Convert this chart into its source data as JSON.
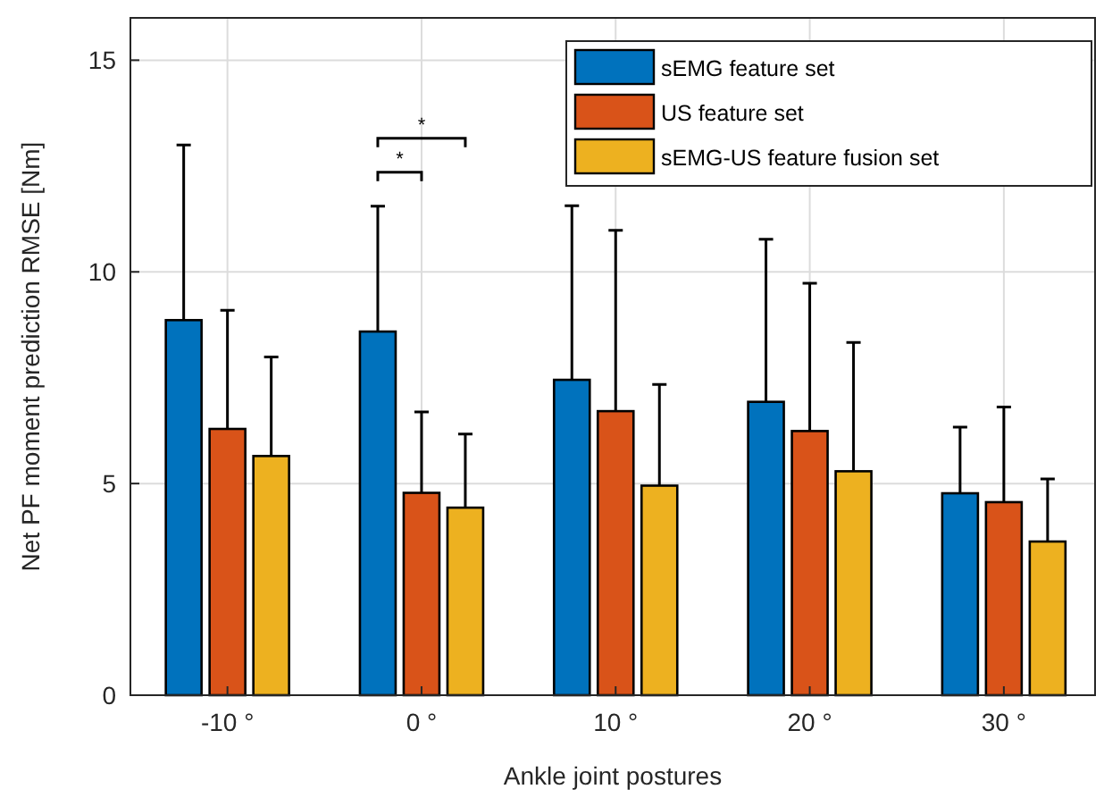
{
  "chart_data": {
    "type": "bar",
    "xlabel": "Ankle joint postures",
    "ylabel": "Net PF moment prediction RMSE [Nm]",
    "categories": [
      "-10 °",
      "0 °",
      "10 °",
      "20 °",
      "30 °"
    ],
    "series": [
      {
        "name": "sEMG feature set",
        "color": "#0072bd",
        "values": [
          8.86,
          8.59,
          7.45,
          6.93,
          4.77
        ],
        "errors": [
          [
            8.86,
            13.0
          ],
          [
            8.59,
            11.55
          ],
          [
            7.45,
            11.56
          ],
          [
            6.93,
            10.77
          ],
          [
            4.77,
            6.33
          ]
        ]
      },
      {
        "name": "US feature set",
        "color": "#d95319",
        "values": [
          6.29,
          4.78,
          6.71,
          6.24,
          4.56
        ],
        "errors": [
          [
            6.29,
            9.09
          ],
          [
            4.78,
            6.69
          ],
          [
            6.71,
            10.98
          ],
          [
            6.24,
            9.73
          ],
          [
            4.56,
            6.81
          ]
        ]
      },
      {
        "name": "sEMG-US feature fusion set",
        "color": "#edb120",
        "values": [
          5.65,
          4.43,
          4.95,
          5.29,
          3.63
        ],
        "errors": [
          [
            5.65,
            7.99
          ],
          [
            4.43,
            6.17
          ],
          [
            4.95,
            7.34
          ],
          [
            5.29,
            8.33
          ],
          [
            3.63,
            5.11
          ]
        ]
      }
    ],
    "ylim": [
      0,
      16
    ],
    "yticks": [
      0,
      5,
      10,
      15
    ],
    "grid": true,
    "legend": "top right",
    "annotations": [
      "*",
      "*"
    ]
  }
}
